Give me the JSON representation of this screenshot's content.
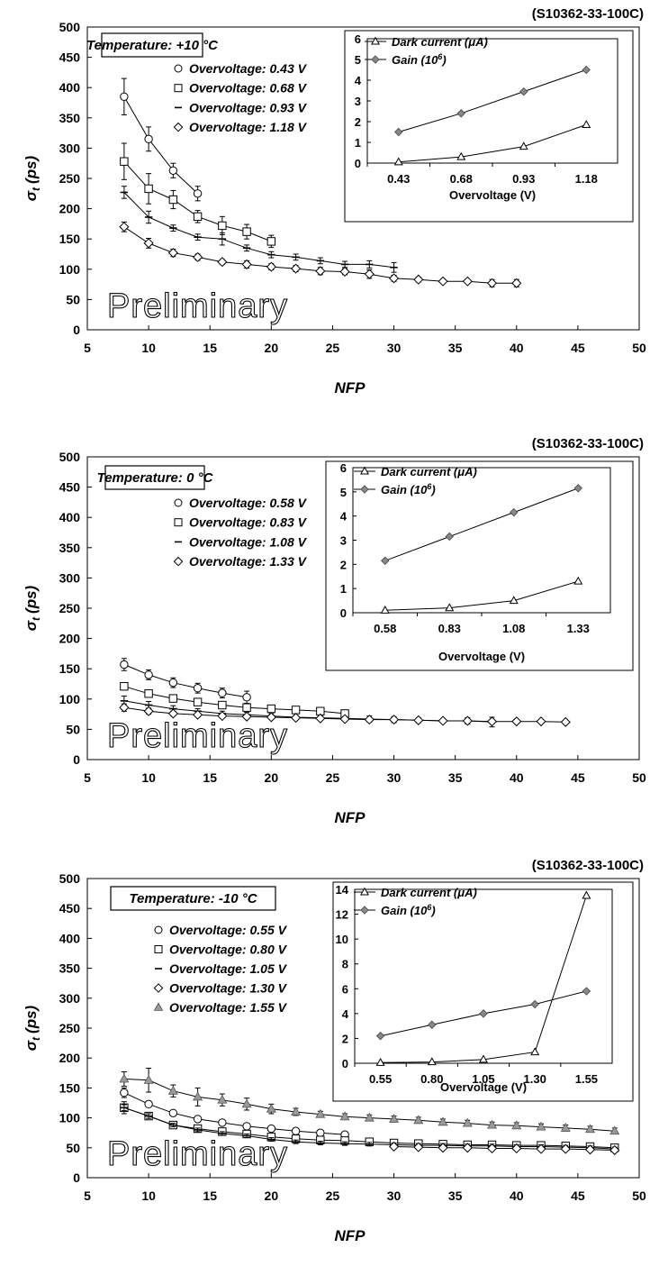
{
  "chart_data": [
    {
      "type": "scatter",
      "model": "(S10362-33-100C)",
      "xlabel": "NFP",
      "ylabel_main": "σ",
      "ylabel_sub": "t",
      "ylabel_unit": "(ps)",
      "xlim": [
        5,
        50
      ],
      "ylim": [
        0,
        500
      ],
      "xticks": [
        "5",
        "10",
        "15",
        "20",
        "25",
        "30",
        "35",
        "40",
        "45",
        "50"
      ],
      "yticks": [
        "0",
        "50",
        "100",
        "150",
        "200",
        "250",
        "300",
        "350",
        "400",
        "450",
        "500"
      ],
      "temperature": "Temperature: +10 °C",
      "watermark": "Preliminary",
      "series": [
        {
          "name": "Overvoltage: 0.43 V",
          "marker": "circle",
          "x": [
            8,
            10,
            12,
            14
          ],
          "y": [
            385,
            315,
            263,
            225
          ],
          "err": [
            30,
            20,
            12,
            12
          ]
        },
        {
          "name": "Overvoltage: 0.68 V",
          "marker": "square",
          "x": [
            8,
            10,
            12,
            14,
            16,
            18,
            20
          ],
          "y": [
            278,
            233,
            215,
            187,
            172,
            162,
            146
          ],
          "err": [
            30,
            25,
            15,
            10,
            15,
            12,
            10
          ]
        },
        {
          "name": "Overvoltage: 0.93 V",
          "marker": "dash",
          "x": [
            8,
            10,
            12,
            14,
            16,
            18,
            20,
            22,
            24,
            26,
            28,
            30
          ],
          "y": [
            227,
            186,
            168,
            153,
            150,
            135,
            124,
            120,
            114,
            108,
            108,
            103
          ],
          "err": [
            10,
            10,
            5,
            5,
            10,
            5,
            5,
            5,
            5,
            5,
            6,
            8
          ]
        },
        {
          "name": "Overvoltage: 1.18 V",
          "marker": "diamond",
          "x": [
            8,
            10,
            12,
            14,
            16,
            18,
            20,
            22,
            24,
            26,
            28,
            30,
            32,
            34,
            36,
            38,
            40
          ],
          "y": [
            170,
            143,
            127,
            120,
            112,
            108,
            104,
            101,
            97,
            96,
            92,
            85,
            83,
            80,
            80,
            77,
            77
          ],
          "err": [
            8,
            8,
            6,
            5,
            4,
            6,
            5,
            5,
            6,
            5,
            7,
            5,
            4,
            3,
            3,
            6,
            6
          ]
        }
      ],
      "inset": {
        "xlabel": "Overvoltage (V)",
        "categories": [
          "0.43",
          "0.68",
          "0.93",
          "1.18"
        ],
        "ylim": [
          0,
          6
        ],
        "yticks": [
          "0",
          "1",
          "2",
          "3",
          "4",
          "5",
          "6"
        ],
        "series": [
          {
            "name_main": "Dark current (",
            "name_mu": "μ",
            "name_tail": "A)",
            "marker": "triangle",
            "values": [
              0.05,
              0.3,
              0.8,
              1.85
            ]
          },
          {
            "name_main": "Gain (10",
            "name_sup": "6",
            "name_tail": ")",
            "marker": "diamond",
            "values": [
              1.5,
              2.4,
              3.45,
              4.5
            ]
          }
        ]
      }
    },
    {
      "type": "scatter",
      "model": "(S10362-33-100C)",
      "xlabel": "NFP",
      "ylabel_main": "σ",
      "ylabel_sub": "t",
      "ylabel_unit": "(ps)",
      "xlim": [
        5,
        50
      ],
      "ylim": [
        0,
        500
      ],
      "xticks": [
        "5",
        "10",
        "15",
        "20",
        "25",
        "30",
        "35",
        "40",
        "45",
        "50"
      ],
      "yticks": [
        "0",
        "50",
        "100",
        "150",
        "200",
        "250",
        "300",
        "350",
        "400",
        "450",
        "500"
      ],
      "temperature": "Temperature: 0 °C",
      "watermark": "Preliminary",
      "series": [
        {
          "name": "Overvoltage: 0.58 V",
          "marker": "circle",
          "x": [
            8,
            10,
            12,
            14,
            16,
            18
          ],
          "y": [
            157,
            140,
            127,
            118,
            110,
            103
          ],
          "err": [
            10,
            8,
            8,
            8,
            8,
            10
          ]
        },
        {
          "name": "Overvoltage: 0.83 V",
          "marker": "square",
          "x": [
            8,
            10,
            12,
            14,
            16,
            18,
            20,
            22,
            24,
            26
          ],
          "y": [
            121,
            109,
            101,
            95,
            90,
            86,
            84,
            82,
            80,
            76
          ],
          "err": [
            6,
            5,
            4,
            4,
            4,
            4,
            3,
            3,
            3,
            6
          ]
        },
        {
          "name": "Overvoltage: 1.08 V",
          "marker": "dash",
          "x": [
            8,
            10,
            12,
            14,
            16,
            18,
            20,
            22,
            24,
            26,
            28,
            30,
            32,
            34,
            36,
            38
          ],
          "y": [
            97,
            90,
            84,
            80,
            76,
            74,
            72,
            70,
            69,
            68,
            67,
            66,
            65,
            64,
            64,
            62
          ],
          "err": [
            8,
            6,
            5,
            4,
            4,
            4,
            4,
            3,
            3,
            3,
            5,
            5,
            4,
            3,
            5,
            8
          ]
        },
        {
          "name": "Overvoltage: 1.33 V",
          "marker": "diamond",
          "x": [
            8,
            10,
            12,
            14,
            16,
            18,
            20,
            22,
            24,
            26,
            28,
            30,
            32,
            34,
            36,
            38,
            40,
            42,
            44
          ],
          "y": [
            86,
            80,
            76,
            74,
            72,
            71,
            70,
            69,
            68,
            67,
            66,
            66,
            65,
            64,
            64,
            63,
            63,
            63,
            62
          ],
          "err": [
            6,
            5,
            4,
            3,
            3,
            3,
            3,
            3,
            3,
            3,
            3,
            3,
            3,
            3,
            3,
            3,
            3,
            2,
            2
          ]
        }
      ],
      "inset": {
        "xlabel": "Overvoltage (V)",
        "categories": [
          "0.58",
          "0.83",
          "1.08",
          "1.33"
        ],
        "ylim": [
          0,
          6
        ],
        "yticks": [
          "0",
          "1",
          "2",
          "3",
          "4",
          "5",
          "6"
        ],
        "series": [
          {
            "name_main": "Dark current (",
            "name_mu": "μ",
            "name_tail": "A)",
            "marker": "triangle",
            "values": [
              0.1,
              0.2,
              0.5,
              1.3
            ]
          },
          {
            "name_main": "Gain (10",
            "name_sup": "6",
            "name_tail": ")",
            "marker": "diamond",
            "values": [
              2.15,
              3.15,
              4.15,
              5.15
            ]
          }
        ]
      }
    },
    {
      "type": "scatter",
      "model": "(S10362-33-100C)",
      "xlabel": "NFP",
      "ylabel_main": "σ",
      "ylabel_sub": "t",
      "ylabel_unit": "(ps)",
      "xlim": [
        5,
        50
      ],
      "ylim": [
        0,
        500
      ],
      "xticks": [
        "5",
        "10",
        "15",
        "20",
        "25",
        "30",
        "35",
        "40",
        "45",
        "50"
      ],
      "yticks": [
        "0",
        "50",
        "100",
        "150",
        "200",
        "250",
        "300",
        "350",
        "400",
        "450",
        "500"
      ],
      "temperature": "Temperature: -10 °C",
      "watermark": "Preliminary",
      "series": [
        {
          "name": "Overvoltage: 0.55 V",
          "marker": "circle",
          "x": [
            8,
            10,
            12,
            14,
            16,
            18,
            20,
            22,
            24,
            26
          ],
          "y": [
            142,
            123,
            108,
            98,
            92,
            86,
            82,
            78,
            75,
            72
          ],
          "err": [
            8,
            5,
            4,
            3,
            3,
            3,
            3,
            3,
            3,
            3
          ]
        },
        {
          "name": "Overvoltage: 0.80 V",
          "marker": "square",
          "x": [
            8,
            10,
            12,
            14,
            16,
            18,
            20,
            22,
            24,
            26,
            28,
            30,
            32,
            34,
            36,
            38,
            40,
            42,
            44,
            46,
            48
          ],
          "y": [
            117,
            103,
            88,
            82,
            77,
            73,
            68,
            65,
            63,
            62,
            60,
            58,
            57,
            56,
            55,
            55,
            54,
            54,
            53,
            52,
            50
          ],
          "err": [
            10,
            5,
            4,
            3,
            3,
            3,
            3,
            3,
            3,
            3,
            3,
            3,
            3,
            3,
            3,
            3,
            3,
            3,
            3,
            3,
            3
          ]
        },
        {
          "name": "Overvoltage: 1.05 V",
          "marker": "dash",
          "x": [
            8,
            10,
            12,
            14,
            16,
            18,
            20,
            22,
            24,
            26,
            28,
            30,
            32,
            34,
            36,
            38,
            40,
            42,
            44,
            46,
            48
          ],
          "y": [
            117,
            103,
            88,
            80,
            74,
            70,
            64,
            60,
            58,
            57,
            56,
            55,
            54,
            54,
            53,
            53,
            52,
            52,
            51,
            50,
            48
          ],
          "err": [
            5,
            4,
            3,
            3,
            3,
            3,
            3,
            3,
            3,
            3,
            3,
            3,
            3,
            3,
            3,
            3,
            3,
            3,
            3,
            3,
            3
          ]
        },
        {
          "name": "Overvoltage: 1.30 V",
          "marker": "diamond",
          "x": [
            30,
            32,
            34,
            36,
            38,
            40,
            42,
            44,
            46,
            48
          ],
          "y": [
            52,
            51,
            50,
            50,
            49,
            49,
            48,
            48,
            47,
            46
          ],
          "err": [
            3,
            3,
            3,
            3,
            3,
            3,
            3,
            3,
            3,
            3
          ]
        },
        {
          "name": "Overvoltage: 1.55 V",
          "marker": "filled-triangle",
          "x": [
            8,
            10,
            12,
            14,
            16,
            18,
            20,
            22,
            24,
            26,
            28,
            30,
            32,
            34,
            36,
            38,
            40,
            42,
            44,
            46,
            48
          ],
          "y": [
            165,
            163,
            145,
            135,
            130,
            123,
            115,
            110,
            106,
            102,
            100,
            98,
            96,
            93,
            91,
            88,
            87,
            85,
            83,
            81,
            78
          ],
          "err": [
            12,
            20,
            10,
            15,
            10,
            10,
            8,
            6,
            5,
            5,
            5,
            5,
            5,
            5,
            5,
            5,
            5,
            5,
            5,
            5,
            5
          ]
        }
      ],
      "inset": {
        "xlabel": "Overvoltage (V)",
        "categories": [
          "0.55",
          "0.80",
          "1.05",
          "1.30",
          "1.55"
        ],
        "ylim": [
          0,
          14
        ],
        "yticks": [
          "0",
          "2",
          "4",
          "6",
          "8",
          "10",
          "12",
          "14"
        ],
        "series": [
          {
            "name_main": "Dark current (",
            "name_mu": "μ",
            "name_tail": "A)",
            "marker": "triangle",
            "values": [
              0.05,
              0.1,
              0.3,
              0.9,
              13.5
            ]
          },
          {
            "name_main": "Gain (10",
            "name_sup": "6",
            "name_tail": ")",
            "marker": "diamond",
            "values": [
              2.2,
              3.1,
              4.0,
              4.75,
              5.8
            ]
          }
        ]
      }
    }
  ]
}
